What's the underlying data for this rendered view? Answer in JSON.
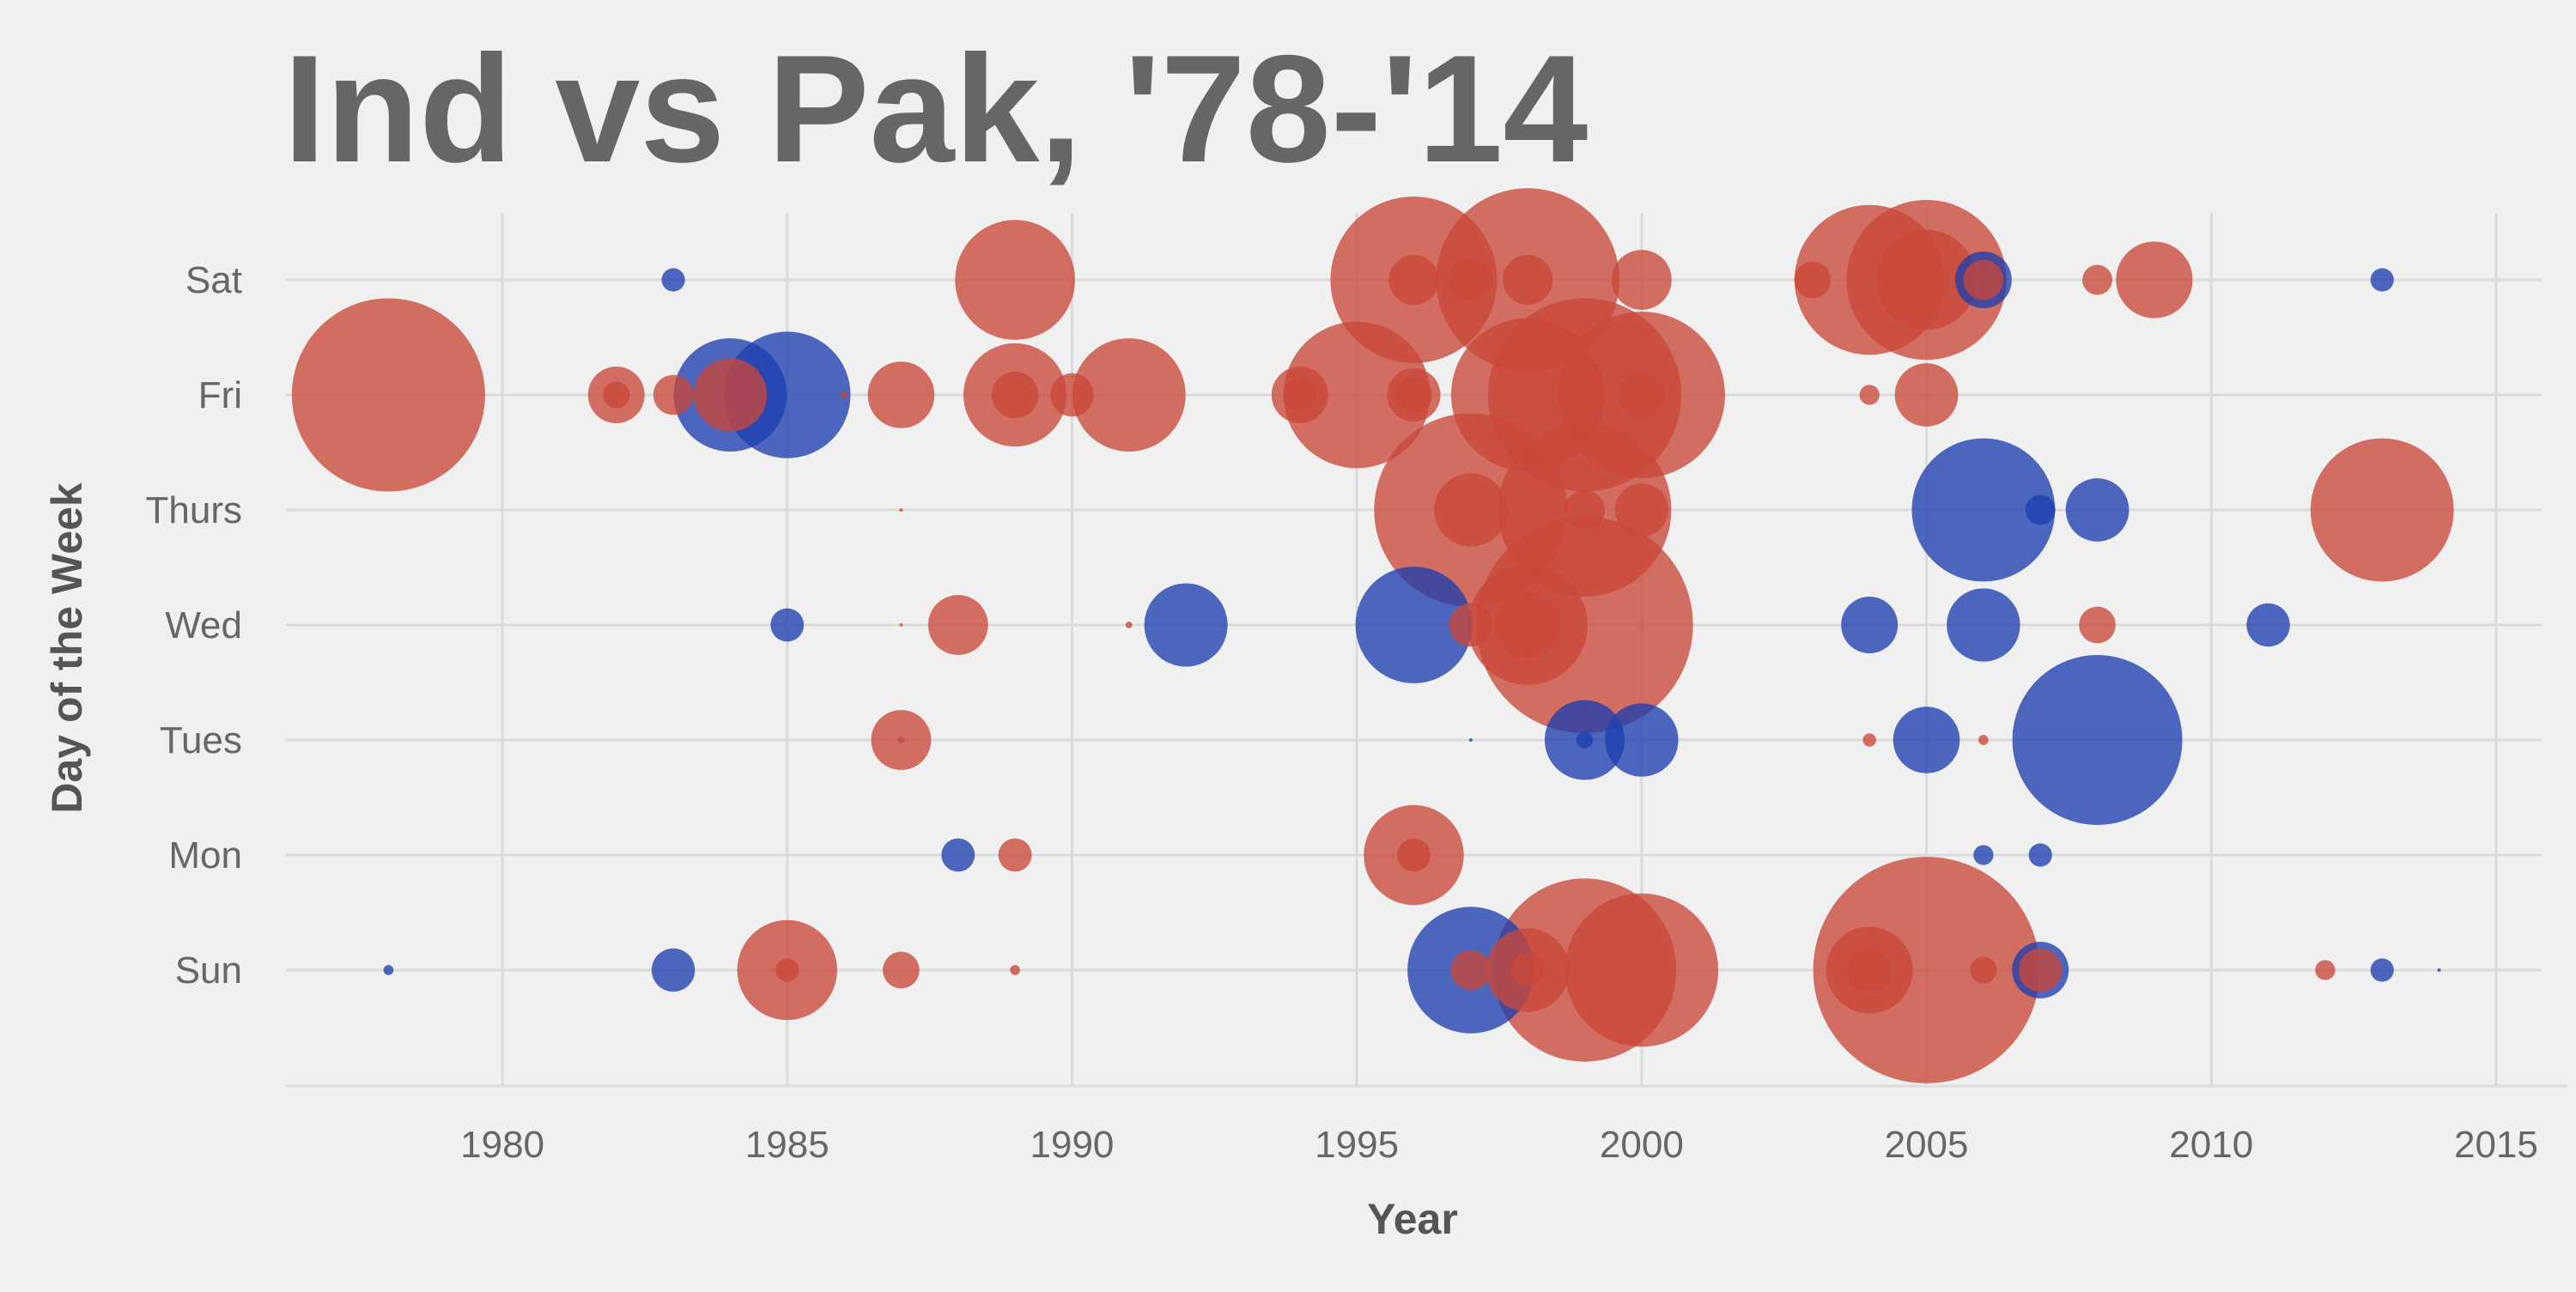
{
  "chart_data": {
    "type": "scatter",
    "title": "Ind vs Pak, '78-'14",
    "xlabel": "Year",
    "ylabel": "Day of the Week",
    "xlim": [
      1976.2,
      2015.8
    ],
    "x_ticks": [
      1980,
      1985,
      1990,
      1995,
      2000,
      2005,
      2010,
      2015
    ],
    "categories": [
      "Sun",
      "Mon",
      "Tues",
      "Wed",
      "Thurs",
      "Fri",
      "Sat"
    ],
    "grid": true,
    "legend": "none",
    "colors": {
      "red": "#c9483a",
      "blue": "#1d3fb0",
      "background": "#f0f0f0",
      "grid": "#dadada",
      "text": "#666666"
    },
    "size_note": "r is relative bubble size (larger value = larger bubble)",
    "series": [
      {
        "color": "red",
        "points": [
          {
            "x": 1978,
            "y": "Fri",
            "r": 58
          },
          {
            "x": 1982,
            "y": "Fri",
            "r": 8
          },
          {
            "x": 1982,
            "y": "Fri",
            "r": 17
          },
          {
            "x": 1983,
            "y": "Fri",
            "r": 12
          },
          {
            "x": 1984,
            "y": "Fri",
            "r": 22
          },
          {
            "x": 1986,
            "y": "Fri",
            "r": 2
          },
          {
            "x": 1987,
            "y": "Fri",
            "r": 20
          },
          {
            "x": 1989,
            "y": "Fri",
            "r": 31
          },
          {
            "x": 1989,
            "y": "Fri",
            "r": 14
          },
          {
            "x": 1990,
            "y": "Fri",
            "r": 13
          },
          {
            "x": 1991,
            "y": "Fri",
            "r": 34
          },
          {
            "x": 1994,
            "y": "Fri",
            "r": 17
          },
          {
            "x": 1994,
            "y": "Fri",
            "r": 10
          },
          {
            "x": 1995,
            "y": "Fri",
            "r": 44
          },
          {
            "x": 1996,
            "y": "Fri",
            "r": 16
          },
          {
            "x": 1996,
            "y": "Fri",
            "r": 11
          },
          {
            "x": 1998,
            "y": "Fri",
            "r": 46
          },
          {
            "x": 1999,
            "y": "Fri",
            "r": 58
          },
          {
            "x": 2000,
            "y": "Fri",
            "r": 50
          },
          {
            "x": 2000,
            "y": "Fri",
            "r": 14
          },
          {
            "x": 2004,
            "y": "Fri",
            "r": 6
          },
          {
            "x": 2005,
            "y": "Fri",
            "r": 19
          },
          {
            "x": 1989,
            "y": "Sat",
            "r": 36
          },
          {
            "x": 1996,
            "y": "Sat",
            "r": 50
          },
          {
            "x": 1996,
            "y": "Sat",
            "r": 15
          },
          {
            "x": 1997,
            "y": "Sat",
            "r": 13
          },
          {
            "x": 1998,
            "y": "Sat",
            "r": 55
          },
          {
            "x": 1998,
            "y": "Sat",
            "r": 15
          },
          {
            "x": 2000,
            "y": "Sat",
            "r": 18
          },
          {
            "x": 2003,
            "y": "Sat",
            "r": 11
          },
          {
            "x": 2004,
            "y": "Sat",
            "r": 45
          },
          {
            "x": 2005,
            "y": "Sat",
            "r": 48
          },
          {
            "x": 2005,
            "y": "Sat",
            "r": 30
          },
          {
            "x": 2006,
            "y": "Sat",
            "r": 12
          },
          {
            "x": 2008,
            "y": "Sat",
            "r": 9
          },
          {
            "x": 2009,
            "y": "Sat",
            "r": 23
          },
          {
            "x": 1987,
            "y": "Thurs",
            "r": 1
          },
          {
            "x": 1997,
            "y": "Thurs",
            "r": 58
          },
          {
            "x": 1997,
            "y": "Thurs",
            "r": 22
          },
          {
            "x": 1999,
            "y": "Thurs",
            "r": 52
          },
          {
            "x": 1999,
            "y": "Thurs",
            "r": 12
          },
          {
            "x": 2000,
            "y": "Thurs",
            "r": 16
          },
          {
            "x": 2013,
            "y": "Thurs",
            "r": 43
          },
          {
            "x": 1987,
            "y": "Wed",
            "r": 1
          },
          {
            "x": 1988,
            "y": "Wed",
            "r": 18
          },
          {
            "x": 1991,
            "y": "Wed",
            "r": 2
          },
          {
            "x": 1997,
            "y": "Wed",
            "r": 13
          },
          {
            "x": 1998,
            "y": "Wed",
            "r": 36
          },
          {
            "x": 1998,
            "y": "Wed",
            "r": 20
          },
          {
            "x": 1999,
            "y": "Wed",
            "r": 65
          },
          {
            "x": 2008,
            "y": "Wed",
            "r": 11
          },
          {
            "x": 1987,
            "y": "Tues",
            "r": 18
          },
          {
            "x": 1987,
            "y": "Tues",
            "r": 2
          },
          {
            "x": 2004,
            "y": "Tues",
            "r": 4
          },
          {
            "x": 2006,
            "y": "Tues",
            "r": 3
          },
          {
            "x": 1989,
            "y": "Mon",
            "r": 10
          },
          {
            "x": 1996,
            "y": "Mon",
            "r": 30
          },
          {
            "x": 1996,
            "y": "Mon",
            "r": 10
          },
          {
            "x": 1985,
            "y": "Sun",
            "r": 30
          },
          {
            "x": 1985,
            "y": "Sun",
            "r": 7
          },
          {
            "x": 1987,
            "y": "Sun",
            "r": 11
          },
          {
            "x": 1989,
            "y": "Sun",
            "r": 3
          },
          {
            "x": 1997,
            "y": "Sun",
            "r": 12
          },
          {
            "x": 1998,
            "y": "Sun",
            "r": 25
          },
          {
            "x": 1998,
            "y": "Sun",
            "r": 10
          },
          {
            "x": 1999,
            "y": "Sun",
            "r": 55
          },
          {
            "x": 2000,
            "y": "Sun",
            "r": 46
          },
          {
            "x": 2004,
            "y": "Sun",
            "r": 26
          },
          {
            "x": 2004,
            "y": "Sun",
            "r": 13
          },
          {
            "x": 2005,
            "y": "Sun",
            "r": 68
          },
          {
            "x": 2006,
            "y": "Sun",
            "r": 8
          },
          {
            "x": 2007,
            "y": "Sun",
            "r": 13
          },
          {
            "x": 2012,
            "y": "Sun",
            "r": 6
          }
        ]
      },
      {
        "color": "blue",
        "points": [
          {
            "x": 1983,
            "y": "Sat",
            "r": 7
          },
          {
            "x": 2006,
            "y": "Sat",
            "r": 17
          },
          {
            "x": 2013,
            "y": "Sat",
            "r": 7
          },
          {
            "x": 1984,
            "y": "Fri",
            "r": 34
          },
          {
            "x": 1985,
            "y": "Fri",
            "r": 38
          },
          {
            "x": 2006,
            "y": "Thurs",
            "r": 43
          },
          {
            "x": 2007,
            "y": "Thurs",
            "r": 9
          },
          {
            "x": 2008,
            "y": "Thurs",
            "r": 19
          },
          {
            "x": 1985,
            "y": "Wed",
            "r": 10
          },
          {
            "x": 1992,
            "y": "Wed",
            "r": 25
          },
          {
            "x": 1996,
            "y": "Wed",
            "r": 35
          },
          {
            "x": 2004,
            "y": "Wed",
            "r": 17
          },
          {
            "x": 2006,
            "y": "Wed",
            "r": 22
          },
          {
            "x": 2011,
            "y": "Wed",
            "r": 13
          },
          {
            "x": 1997,
            "y": "Tues",
            "r": 1
          },
          {
            "x": 1999,
            "y": "Tues",
            "r": 24
          },
          {
            "x": 1999,
            "y": "Tues",
            "r": 5
          },
          {
            "x": 2000,
            "y": "Tues",
            "r": 22
          },
          {
            "x": 2005,
            "y": "Tues",
            "r": 20
          },
          {
            "x": 2008,
            "y": "Tues",
            "r": 51
          },
          {
            "x": 1988,
            "y": "Mon",
            "r": 10
          },
          {
            "x": 2006,
            "y": "Mon",
            "r": 6
          },
          {
            "x": 2007,
            "y": "Mon",
            "r": 7
          },
          {
            "x": 1978,
            "y": "Sun",
            "r": 3
          },
          {
            "x": 1983,
            "y": "Sun",
            "r": 13
          },
          {
            "x": 1997,
            "y": "Sun",
            "r": 38
          },
          {
            "x": 2007,
            "y": "Sun",
            "r": 17
          },
          {
            "x": 2013,
            "y": "Sun",
            "r": 7
          },
          {
            "x": 2014,
            "y": "Sun",
            "r": 1
          }
        ]
      }
    ]
  }
}
